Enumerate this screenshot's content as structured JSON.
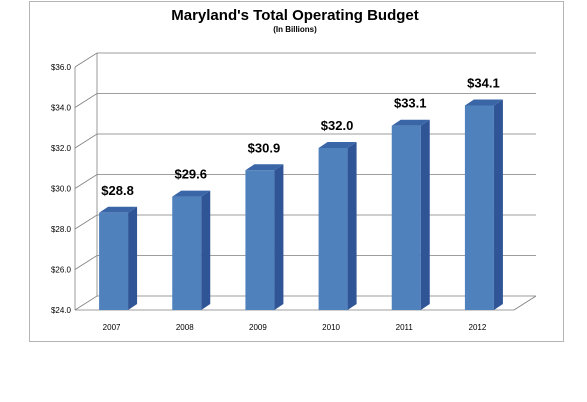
{
  "chart_data": {
    "type": "bar",
    "title": "Maryland's Total Operating Budget",
    "subtitle": "(In Billions)",
    "categories": [
      "2007",
      "2008",
      "2009",
      "2010",
      "2011",
      "2012"
    ],
    "values": [
      28.8,
      29.6,
      30.9,
      32.0,
      33.1,
      34.1
    ],
    "data_labels": [
      "$28.8",
      "$29.6",
      "$30.9",
      "$32.0",
      "$33.1",
      "$34.1"
    ],
    "yticks": [
      "$24.0",
      "$26.0",
      "$28.0",
      "$30.0",
      "$32.0",
      "$34.0",
      "$36.0"
    ],
    "ylim": [
      24,
      36
    ],
    "grid": true,
    "legend": "none",
    "colors": {
      "bar_front": "#4f81bd",
      "bar_side": "#2f5597",
      "bar_top": "#3a66a8",
      "grid": "#7f7f7f"
    }
  }
}
